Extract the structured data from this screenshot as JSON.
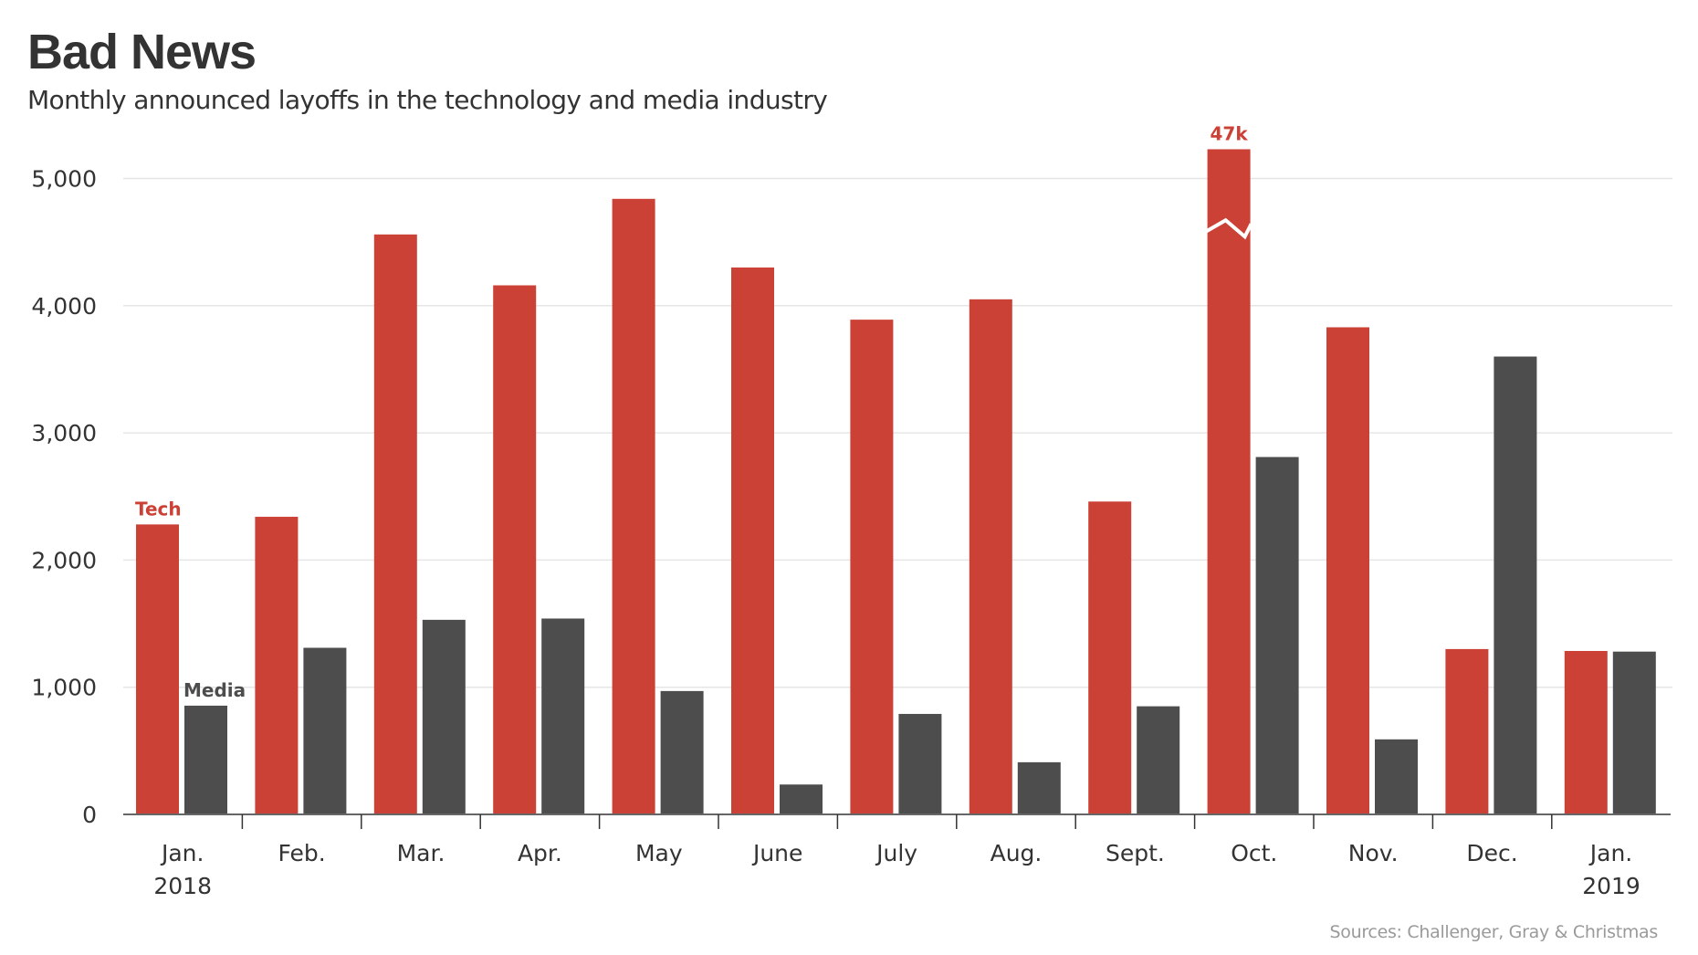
{
  "header": {
    "title": "Bad News",
    "subtitle": "Monthly announced layoffs in the technology and media industry"
  },
  "footer": {
    "source": "Sources: Challenger, Gray & Christmas"
  },
  "colors": {
    "tech": "#cc4136",
    "media": "#4d4d4d",
    "grid": "#e6e6e6",
    "axis": "#666666",
    "text": "#333333"
  },
  "chart_data": {
    "type": "bar",
    "title": "Bad News",
    "subtitle": "Monthly announced layoffs in the technology and media industry",
    "xlabel": "",
    "ylabel": "",
    "categories": [
      [
        "Jan.",
        "2018"
      ],
      [
        "Feb."
      ],
      [
        "Mar."
      ],
      [
        "Apr."
      ],
      [
        "May"
      ],
      [
        "June"
      ],
      [
        "July"
      ],
      [
        "Aug."
      ],
      [
        "Sept."
      ],
      [
        "Oct."
      ],
      [
        "Nov."
      ],
      [
        "Dec."
      ],
      [
        "Jan.",
        "2019"
      ]
    ],
    "series": [
      {
        "name": "Tech",
        "color": "#cc4136",
        "values": [
          2280,
          2340,
          4560,
          4160,
          4840,
          4300,
          3890,
          4050,
          2460,
          47000,
          3830,
          1300,
          1285
        ]
      },
      {
        "name": "Media",
        "color": "#4d4d4d",
        "values": [
          855,
          1310,
          1530,
          1540,
          970,
          235,
          790,
          410,
          850,
          2810,
          590,
          3600,
          1280
        ]
      }
    ],
    "ylim": [
      0,
      5000
    ],
    "yticks": [
      0,
      1000,
      2000,
      3000,
      4000,
      5000
    ],
    "ytick_labels": [
      "0",
      "1,000",
      "2,000",
      "3,000",
      "4,000",
      "5,000"
    ],
    "grid": true,
    "legend": "inline-labels",
    "annotations": [
      {
        "text": "Tech",
        "series": "Tech",
        "category_index": 0
      },
      {
        "text": "Media",
        "series": "Media",
        "category_index": 0
      },
      {
        "text": "47k",
        "series": "Tech",
        "category_index": 9,
        "note": "axis break; bar truncated"
      }
    ],
    "axis_break": {
      "series": "Tech",
      "category_index": 9,
      "display_cap": 5230
    }
  }
}
